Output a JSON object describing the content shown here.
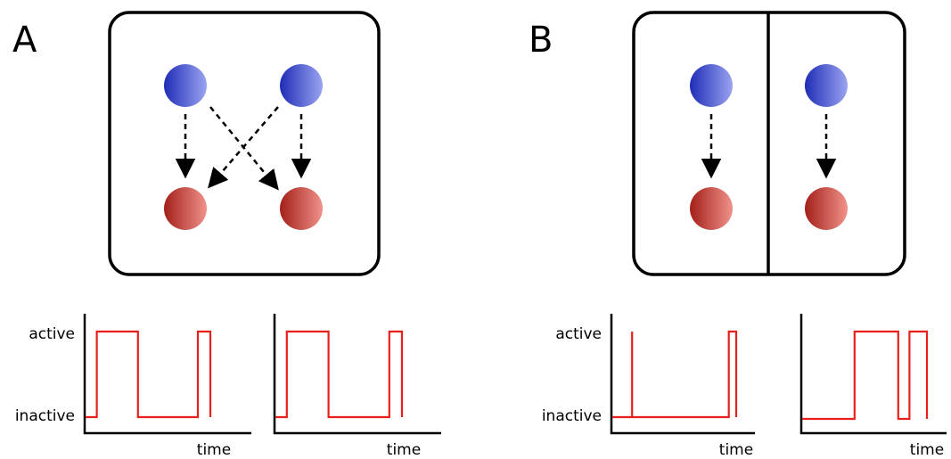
{
  "panels": [
    {
      "label": "A",
      "shared_box": true,
      "connections": "crossed",
      "traces": [
        {
          "steps": [
            [
              0,
              0
            ],
            [
              0.09,
              0
            ],
            [
              0.09,
              1
            ],
            [
              0.42,
              1
            ],
            [
              0.42,
              0
            ],
            [
              0.9,
              0
            ],
            [
              0.9,
              1
            ],
            [
              1.0,
              1
            ],
            [
              1.0,
              0
            ]
          ]
        },
        {
          "steps": [
            [
              0,
              0
            ],
            [
              0.09,
              0
            ],
            [
              0.09,
              1
            ],
            [
              0.42,
              1
            ],
            [
              0.42,
              0
            ],
            [
              0.9,
              0
            ],
            [
              0.9,
              1
            ],
            [
              1.0,
              1
            ],
            [
              1.0,
              0
            ]
          ]
        }
      ]
    },
    {
      "label": "B",
      "shared_box": false,
      "connections": "direct",
      "traces": [
        {
          "steps": [
            [
              0,
              0
            ],
            [
              0.16,
              0
            ],
            [
              0.16,
              1
            ],
            [
              0.16,
              0
            ],
            [
              0.94,
              0
            ],
            [
              0.94,
              1
            ],
            [
              1.0,
              1
            ],
            [
              1.0,
              0
            ]
          ]
        },
        {
          "steps": [
            [
              0,
              0
            ],
            [
              0.42,
              0
            ],
            [
              0.42,
              1
            ],
            [
              0.77,
              1
            ],
            [
              0.77,
              0
            ],
            [
              0.86,
              0
            ],
            [
              0.86,
              1
            ],
            [
              1.0,
              1
            ],
            [
              1.0,
              0
            ]
          ]
        }
      ]
    }
  ],
  "axis": {
    "active_label": "active",
    "inactive_label": "inactive",
    "time_label": "time"
  },
  "colors": {
    "presynaptic_neuron": "#3a44c8",
    "postsynaptic_neuron": "#c8403a",
    "trace": "#e8201c",
    "outline": "#000000"
  }
}
